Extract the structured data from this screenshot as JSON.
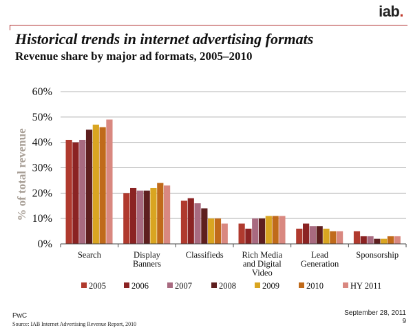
{
  "brand": {
    "logo_text": "iab",
    "logo_dot": "."
  },
  "header": {
    "title": "Historical trends in internet advertising formats",
    "subtitle": "Revenue share by major ad formats, 2005–2010"
  },
  "footer": {
    "company": "PwC",
    "source": "Source: IAB Internet Advertising Revenue Report, 2010",
    "date": "September 28, 2011",
    "page": "9"
  },
  "chart_data": {
    "type": "bar",
    "title": "Revenue share by major ad formats, 2005–2010",
    "xlabel": "",
    "ylabel": "% of total revenue",
    "ylim": [
      0,
      60
    ],
    "yticks": [
      0,
      10,
      20,
      30,
      40,
      50,
      60
    ],
    "ytick_labels": [
      "0%",
      "10%",
      "20%",
      "30%",
      "40%",
      "50%",
      "60%"
    ],
    "grid": true,
    "legend_position": "bottom",
    "categories": [
      [
        "Search"
      ],
      [
        "Display",
        "Banners"
      ],
      [
        "Classifieds"
      ],
      [
        "Rich Media",
        "and Digital",
        "Video"
      ],
      [
        "Lead",
        "Generation"
      ],
      [
        "Sponsorship"
      ]
    ],
    "series": [
      {
        "name": "2005",
        "color": "#b03a2e",
        "values": [
          41,
          20,
          17,
          8,
          6,
          5
        ]
      },
      {
        "name": "2006",
        "color": "#8b2323",
        "values": [
          40,
          22,
          18,
          6,
          8,
          3
        ]
      },
      {
        "name": "2007",
        "color": "#a86a80",
        "values": [
          41,
          21,
          16,
          10,
          7,
          3
        ]
      },
      {
        "name": "2008",
        "color": "#5e1f1f",
        "values": [
          45,
          21,
          14,
          10,
          7,
          2
        ]
      },
      {
        "name": "2009",
        "color": "#d9a521",
        "values": [
          47,
          22,
          10,
          11,
          6,
          2
        ]
      },
      {
        "name": "2010",
        "color": "#c06a1a",
        "values": [
          46,
          24,
          10,
          11,
          5,
          3
        ]
      },
      {
        "name": "HY 2011",
        "color": "#d98880",
        "values": [
          49,
          23,
          8,
          11,
          5,
          3
        ]
      }
    ]
  }
}
